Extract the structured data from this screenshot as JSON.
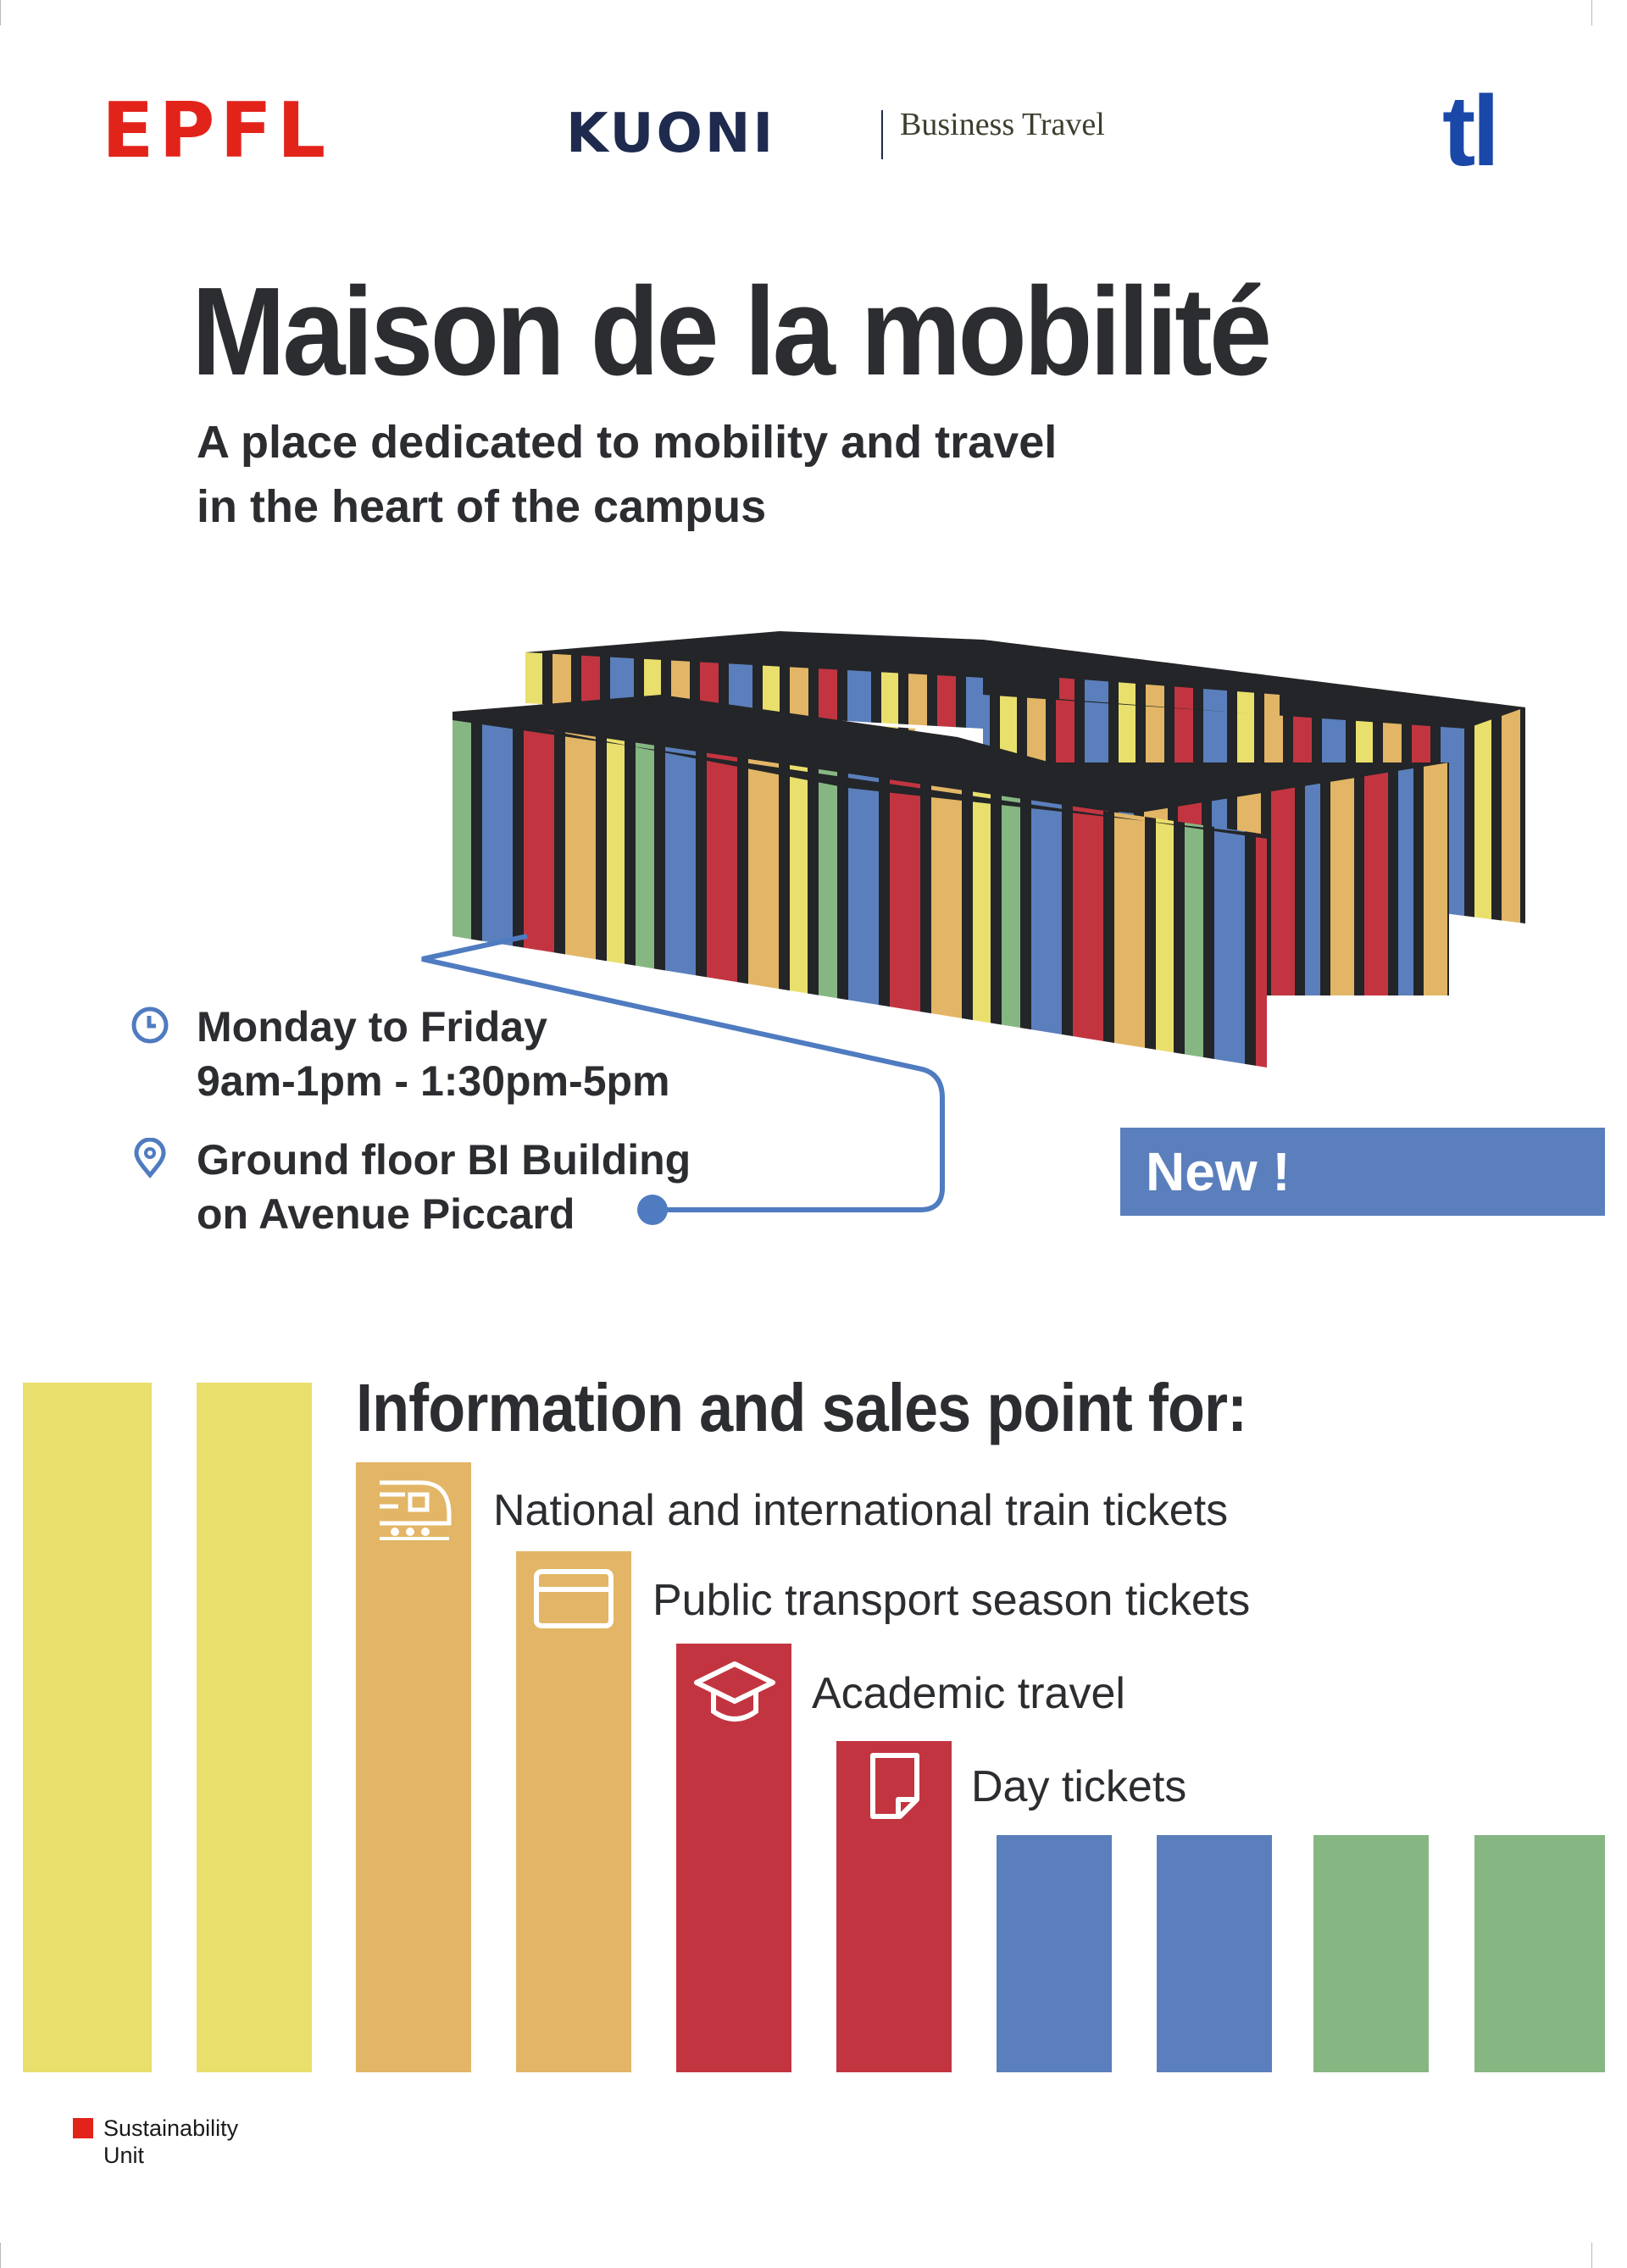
{
  "logos": {
    "epfl": "EPFL",
    "kuoni_word": "KUONI",
    "kuoni_sub": "Business Travel",
    "tl": "tl"
  },
  "headline": {
    "title": "Maison de la mobilité",
    "subtitle_line1": "A place dedicated to mobility and travel",
    "subtitle_line2": "in the heart of the campus"
  },
  "info": {
    "hours_line1": "Monday to Friday",
    "hours_line2": "9am-1pm - 1:30pm-5pm",
    "location_line1": "Ground floor BI Building",
    "location_line2": "on Avenue Piccard",
    "hours_icon": "clock-icon",
    "location_icon": "map-pin-icon"
  },
  "badge": {
    "label": "New !"
  },
  "services": {
    "heading": "Information and sales point for:",
    "items": [
      {
        "label": "National and international train tickets",
        "icon": "train-icon"
      },
      {
        "label": "Public transport season tickets",
        "icon": "card-icon"
      },
      {
        "label": "Academic travel",
        "icon": "graduation-cap-icon"
      },
      {
        "label": "Day tickets",
        "icon": "ticket-icon"
      }
    ]
  },
  "footer": {
    "unit_line1": "Sustainability",
    "unit_line2": "Unit"
  },
  "colors": {
    "yellow": "#e9df6c",
    "orange": "#e2b666",
    "red": "#c23540",
    "blue": "#5a7fbc",
    "green": "#86b783",
    "dark": "#232528",
    "epfl_red": "#e2231a",
    "kuoni_navy": "#1f2a4f",
    "tl_blue": "#1a48a8"
  }
}
